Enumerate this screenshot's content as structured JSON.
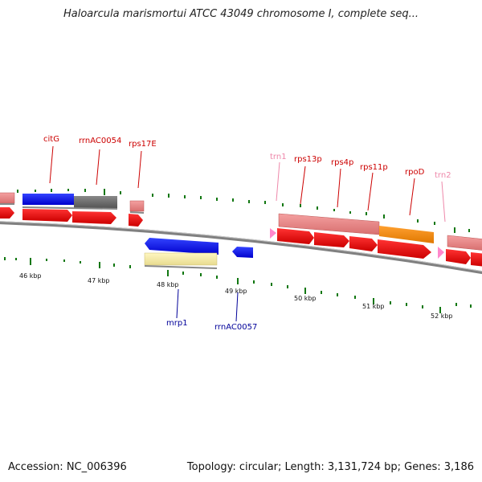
{
  "title": "Haloarcula marismortui ATCC 43049 chromosome I, complete seq...",
  "footer": {
    "accession": "Accession: NC_006396",
    "summary": "Topology: circular; Length: 3,131,724 bp; Genes: 3,186"
  },
  "colors": {
    "label_red": "#cc0000",
    "label_pink": "#ee88aa",
    "label_blue": "#000099",
    "backbone": "#888888",
    "tick": "#117711"
  },
  "kbp_labels": [
    "46 kbp",
    "47 kbp",
    "48 kbp",
    "49 kbp",
    "50 kbp",
    "51 kbp",
    "52 kbp"
  ],
  "upper_labels": [
    "citG",
    "rrnAC0054",
    "rps17E",
    "trn1",
    "rps13p",
    "rps4p",
    "rps11p",
    "rpoD",
    "trn2"
  ],
  "lower_labels": [
    "mrp1",
    "rrnAC0057"
  ]
}
